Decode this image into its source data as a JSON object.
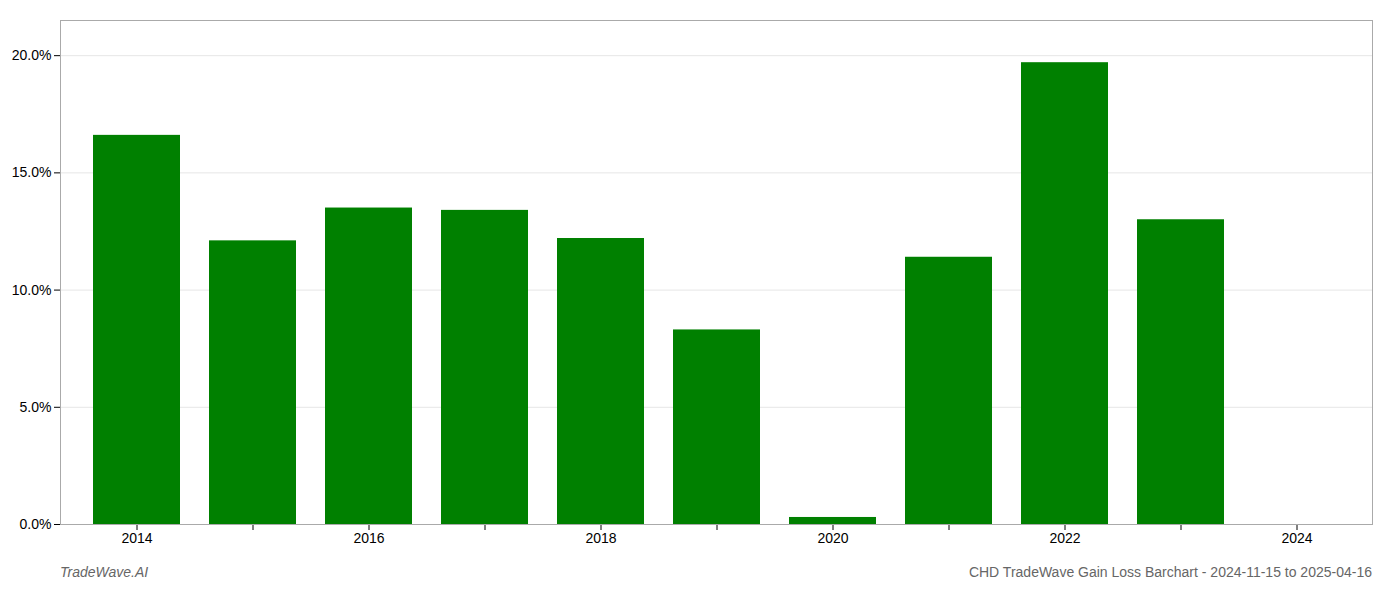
{
  "chart_data": {
    "type": "bar",
    "title": "CHD TradeWave Gain Loss Barchart - 2024-11-15 to 2025-04-16",
    "annotations": [
      "TradeWave.AI"
    ],
    "categories": [
      "2014",
      null,
      "2016",
      null,
      "2018",
      null,
      "2020",
      null,
      "2022",
      null,
      "2024"
    ],
    "values": [
      0.166,
      0.121,
      0.135,
      0.134,
      0.122,
      0.083,
      0.003,
      0.114,
      0.197,
      0.13,
      0.0
    ],
    "color": "#008000",
    "ylim": [
      0,
      0.215
    ],
    "yticks": [
      {
        "value": 0.0,
        "label": "0.0%"
      },
      {
        "value": 0.05,
        "label": "5.0%"
      },
      {
        "value": 0.1,
        "label": "10.0%"
      },
      {
        "value": 0.15,
        "label": "15.0%"
      },
      {
        "value": 0.2,
        "label": "20.0%"
      }
    ],
    "grid": true
  }
}
